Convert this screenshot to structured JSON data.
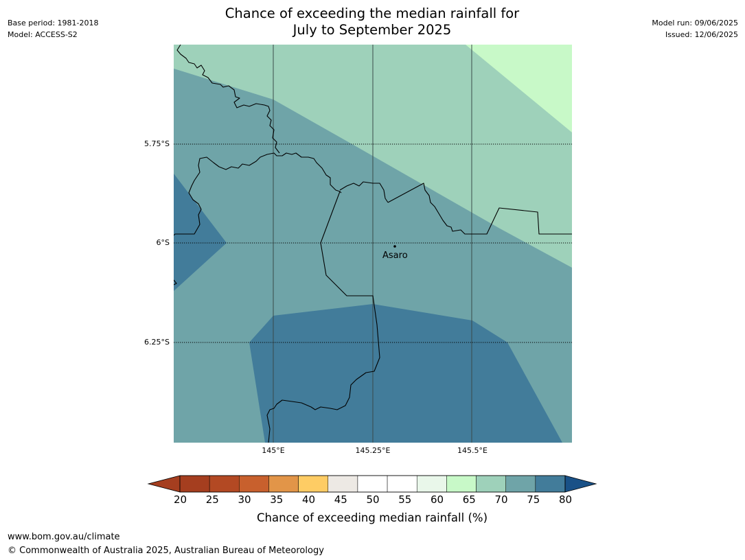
{
  "title_line1": "Chance of exceeding the median rainfall for",
  "title_line2": "July to September 2025",
  "base_period": "Base period: 1981-2018",
  "model": "Model: ACCESS-S2",
  "model_run": "Model run: 09/06/2025",
  "issued": "Issued: 12/06/2025",
  "map": {
    "lat_ticks": [
      "5.75°S",
      "6°S",
      "6.25°S"
    ],
    "lon_ticks": [
      "145°E",
      "145.25°E",
      "145.5°E"
    ],
    "place_label": "Asaro",
    "colors": {
      "c60_65": "#c8f9c8",
      "c65_70": "#9ed1ba",
      "c70_75": "#6fa4a8",
      "c75_80": "#427c9a",
      "border": "#000000"
    }
  },
  "colorbar": {
    "labels": [
      "20",
      "25",
      "30",
      "35",
      "40",
      "45",
      "50",
      "55",
      "60",
      "65",
      "70",
      "75",
      "80"
    ],
    "colors": [
      "#a53e1f",
      "#b34923",
      "#c8602d",
      "#e29548",
      "#fecc64",
      "#ede9e4",
      "#ffffff",
      "#ffffff",
      "#e9f7ea",
      "#c8f9c8",
      "#9ed1ba",
      "#6fa4a8",
      "#427c9a"
    ],
    "low_extend_color": "#a53e1f",
    "high_extend_color": "#195187",
    "title": "Chance of exceeding median rainfall (%)"
  },
  "footer": {
    "url": "www.bom.gov.au/climate",
    "copyright": "© Commonwealth of Australia 2025, Australian Bureau of Meteorology"
  }
}
